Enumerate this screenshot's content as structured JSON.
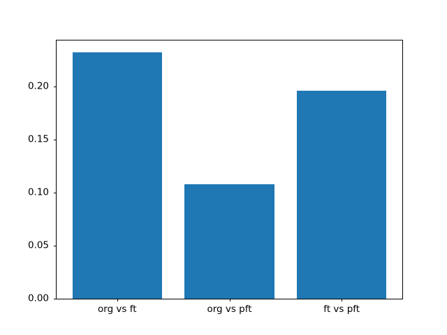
{
  "chart_data": {
    "type": "bar",
    "categories": [
      "org vs ft",
      "org vs pft",
      "ft vs pft"
    ],
    "values": [
      0.232,
      0.108,
      0.196
    ],
    "title": "",
    "xlabel": "",
    "ylabel": "",
    "ylim": [
      0,
      0.2435
    ],
    "yticks": [
      0.0,
      0.05,
      0.1,
      0.15,
      0.2
    ],
    "ytick_labels": [
      "0.00",
      "0.05",
      "0.10",
      "0.15",
      "0.20"
    ],
    "bar_color": "#1f77b4",
    "axis_color": "#000000",
    "background_color": "#ffffff",
    "grid": false,
    "legend": "none"
  }
}
